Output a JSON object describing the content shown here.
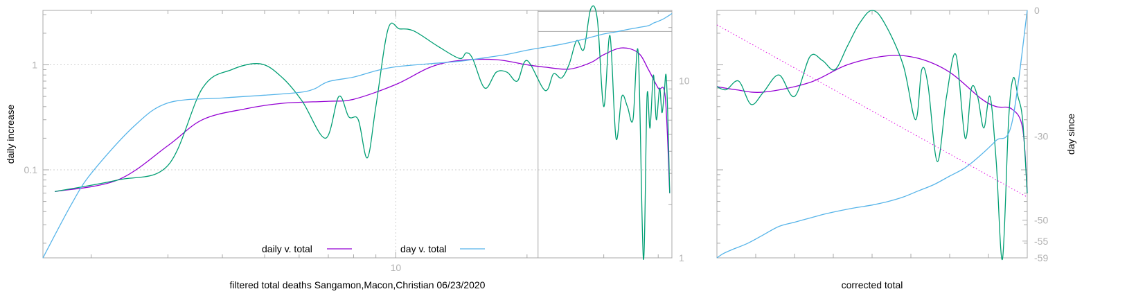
{
  "chart_data": [
    {
      "type": "line",
      "title": "",
      "xlabel": "filtered total deaths Sangamon,Macon,Christian 06/23/2020",
      "ylabel": "daily increase",
      "y2label": "",
      "xscale": "log",
      "yscale": "log",
      "y2scale": "log",
      "xlim": [
        1.55,
        43
      ],
      "ylim": [
        0.0145,
        3.3
      ],
      "y2lim": [
        1,
        25
      ],
      "xticks": [
        {
          "value": 10,
          "label": "10"
        }
      ],
      "yticks": [
        {
          "value": 0.1,
          "label": "0.1"
        },
        {
          "value": 1,
          "label": "1"
        }
      ],
      "y2ticks": [
        {
          "value": 1,
          "label": "1"
        },
        {
          "value": 10,
          "label": "10"
        }
      ],
      "grid": true,
      "legend": "bottom-center",
      "series": [
        {
          "name": "daily v. total",
          "color": "#9400d3",
          "axis": "y",
          "x": [
            1.65,
            2.3,
            3.0,
            3.6,
            4.5,
            5.5,
            7.0,
            8.0,
            10.0,
            12.0,
            14.0,
            17.0,
            20.0,
            22.0,
            25.0,
            28.0,
            30.0,
            33.0,
            36.0,
            38.0,
            40.0,
            41.5,
            42.5
          ],
          "y": [
            0.062,
            0.08,
            0.17,
            0.3,
            0.38,
            0.43,
            0.45,
            0.47,
            0.65,
            0.95,
            1.1,
            1.12,
            1.0,
            0.95,
            0.91,
            1.05,
            1.25,
            1.45,
            1.3,
            0.9,
            0.6,
            0.5,
            0.06
          ]
        },
        {
          "name": "",
          "color": "#009e73",
          "axis": "y",
          "x": [
            1.65,
            2.3,
            3.0,
            3.6,
            4.2,
            4.9,
            5.5,
            6.1,
            6.9,
            7.4,
            7.8,
            8.2,
            8.6,
            9.0,
            9.6,
            10.2,
            11.0,
            12.5,
            14.0,
            14.5,
            15.0,
            16.0,
            17.0,
            18.0,
            19.0,
            20.0,
            22.0,
            23.0,
            24.0,
            25.0,
            26.0,
            27.0,
            28.0,
            29.0,
            30.0,
            31.0,
            32.0,
            33.0,
            34.0,
            35.0,
            36.0,
            37.0,
            37.7,
            38.3,
            39.0,
            39.6,
            40.3,
            40.8,
            41.3,
            41.7,
            42.1,
            42.5
          ],
          "y": [
            0.062,
            0.08,
            0.11,
            0.6,
            0.9,
            1.02,
            0.75,
            0.45,
            0.2,
            0.5,
            0.32,
            0.3,
            0.13,
            0.4,
            2.2,
            2.2,
            2.1,
            1.5,
            1.15,
            1.3,
            1.15,
            0.6,
            0.85,
            0.85,
            0.7,
            1.1,
            0.57,
            0.82,
            0.75,
            1.02,
            1.7,
            1.4,
            3.4,
            2.7,
            0.4,
            1.9,
            0.2,
            0.5,
            0.4,
            0.3,
            1.3,
            0.01,
            0.5,
            0.25,
            0.8,
            0.3,
            0.6,
            0.35,
            0.55,
            0.8,
            0.3,
            0.06
          ]
        },
        {
          "name": "day v. total",
          "color": "#56b4e9",
          "axis": "y2",
          "x": [
            1.55,
            1.8,
            2.0,
            2.5,
            3.0,
            4.0,
            5.0,
            6.0,
            6.5,
            7.0,
            8.0,
            9.0,
            10.0,
            12.0,
            14.0,
            16.0,
            18.0,
            20.0,
            22.0,
            24.0,
            26.0,
            28.0,
            30.0,
            32.0,
            34.0,
            36.0,
            38.0,
            39.0,
            40.0,
            41.0,
            42.0,
            43.0
          ],
          "y": [
            1.0,
            2.0,
            3.0,
            5.5,
            7.5,
            8.0,
            8.3,
            8.6,
            9.0,
            9.9,
            10.5,
            11.4,
            12.0,
            12.5,
            12.9,
            13.5,
            14.1,
            14.9,
            15.5,
            16.1,
            16.8,
            17.6,
            18.4,
            18.9,
            19.5,
            20.0,
            20.5,
            21.2,
            21.7,
            22.3,
            23.1,
            24.0
          ]
        }
      ],
      "annotations": [
        {
          "type": "vertical-line",
          "x": 21.2
        },
        {
          "type": "horizontal-segment",
          "x": [
            21.2,
            43
          ],
          "y2": 19.0
        },
        {
          "type": "horizontal-segment",
          "x": [
            21.2,
            43
          ],
          "y2": 24.7
        }
      ]
    },
    {
      "type": "line",
      "title": "",
      "xlabel": "corrected total",
      "ylabel": "",
      "y2label": "day since",
      "yscale": "log",
      "ylim": [
        0.0145,
        3.3
      ],
      "y2lim": [
        -59,
        0
      ],
      "y2ticks": [
        {
          "value": 0,
          "label": "0"
        },
        {
          "value": -30,
          "label": "-30"
        },
        {
          "value": -50,
          "label": "-50"
        },
        {
          "value": -55,
          "label": "-55"
        },
        {
          "value": -59,
          "label": "-59"
        }
      ],
      "xlim": [
        0,
        1
      ],
      "grid": false,
      "series": [
        {
          "name": "",
          "color": "#9400d3",
          "axis": "y",
          "x": [
            0,
            0.06,
            0.15,
            0.3,
            0.42,
            0.55,
            0.65,
            0.75,
            0.85,
            0.9,
            0.95,
            0.985,
            1.0
          ],
          "y": [
            0.62,
            0.58,
            0.55,
            0.68,
            1.0,
            1.22,
            1.15,
            0.85,
            0.48,
            0.4,
            0.38,
            0.25,
            0.06
          ]
        },
        {
          "name": "",
          "color": "#009e73",
          "axis": "y",
          "x": [
            0,
            0.03,
            0.07,
            0.11,
            0.15,
            0.2,
            0.25,
            0.3,
            0.34,
            0.38,
            0.42,
            0.46,
            0.5,
            0.54,
            0.6,
            0.64,
            0.66,
            0.68,
            0.71,
            0.74,
            0.77,
            0.8,
            0.82,
            0.84,
            0.86,
            0.88,
            0.9,
            0.92,
            0.94,
            0.955,
            0.97,
            0.985,
            1.0
          ],
          "y": [
            0.62,
            0.58,
            0.7,
            0.42,
            0.55,
            0.8,
            0.5,
            1.2,
            1.1,
            0.9,
            1.5,
            2.5,
            3.3,
            2.5,
            1.0,
            0.3,
            0.9,
            0.65,
            0.12,
            0.5,
            1.25,
            0.2,
            0.6,
            0.5,
            0.25,
            0.5,
            0.12,
            0.01,
            0.3,
            0.75,
            0.5,
            0.3,
            0.06
          ]
        },
        {
          "name": "",
          "color": "#56b4e9",
          "axis": "y2",
          "x": [
            0,
            0.02,
            0.05,
            0.1,
            0.15,
            0.2,
            0.25,
            0.3,
            0.35,
            0.4,
            0.45,
            0.5,
            0.55,
            0.6,
            0.65,
            0.7,
            0.75,
            0.8,
            0.85,
            0.9,
            0.95,
            1.0
          ],
          "y": [
            -59,
            -58,
            -57,
            -55.5,
            -53.5,
            -51.5,
            -50.5,
            -49.5,
            -48.5,
            -47.7,
            -47.0,
            -46.4,
            -45.6,
            -44.5,
            -43.0,
            -41.5,
            -39.5,
            -37.5,
            -34.5,
            -31.0,
            -27.0,
            0
          ]
        },
        {
          "name": "",
          "color": "#e000e0",
          "axis": "y",
          "style": "dotted",
          "x": [
            0,
            1
          ],
          "y": [
            2.4,
            0.055
          ]
        }
      ]
    }
  ]
}
